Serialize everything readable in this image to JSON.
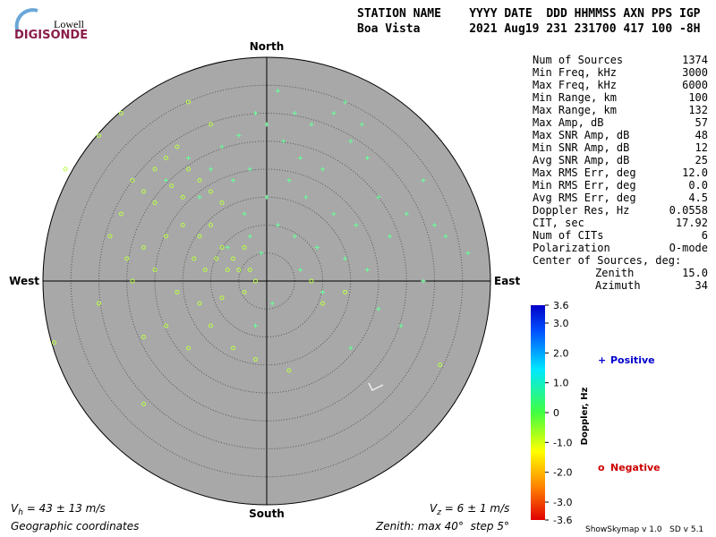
{
  "header": {
    "logo_top": "Lowell",
    "logo_bottom": "DIGISONDE",
    "line1": "STATION NAME    YYYY DATE  DDD HHMMSS AXN PPS IGP",
    "line2": "Boa Vista       2021 Aug19 231 231700 417 100 -8H"
  },
  "stats": {
    "rows": [
      [
        "Num of Sources",
        "1374"
      ],
      [
        "Min Freq, kHz",
        "3000"
      ],
      [
        "Max Freq, kHz",
        "6000"
      ],
      [
        "Min Range, km",
        "100"
      ],
      [
        "Max Range, km",
        "132"
      ],
      [
        "Max Amp, dB",
        "57"
      ],
      [
        "Max SNR Amp, dB",
        "48"
      ],
      [
        "Min SNR Amp, dB",
        "12"
      ],
      [
        "Avg SNR Amp, dB",
        "25"
      ],
      [
        "Max RMS Err, deg",
        "12.0"
      ],
      [
        "Min RMS Err, deg",
        "0.0"
      ],
      [
        "Avg RMS Err, deg",
        "4.5"
      ],
      [
        "Doppler Res, Hz",
        "0.0558"
      ],
      [
        "CIT, sec",
        "17.92"
      ],
      [
        "Num of CITs",
        "6"
      ],
      [
        "Polarization",
        "O-mode"
      ]
    ],
    "center_title": "Center of Sources, deg:",
    "center_rows": [
      [
        "Zenith",
        "15.0"
      ],
      [
        "Azimuth",
        "34"
      ]
    ]
  },
  "chart_data": {
    "type": "skymap",
    "directions": {
      "north": "North",
      "south": "South",
      "east": "East",
      "west": "West"
    },
    "xlim": [
      -40,
      40
    ],
    "ylim": [
      -40,
      40
    ],
    "rticks": [
      5,
      10,
      15,
      20,
      25,
      30,
      35,
      40
    ],
    "series": [
      {
        "name": "Positive",
        "marker": "+",
        "color": "#66ff99",
        "label_color": "#0000cc",
        "x": [
          2,
          5,
          8,
          12,
          15,
          18,
          20,
          10,
          6,
          3,
          0,
          -2,
          -5,
          -8,
          4,
          7,
          12,
          16,
          22,
          25,
          28,
          30,
          -3,
          -6,
          -10,
          -12,
          -4,
          0,
          2,
          5,
          9,
          14,
          18,
          -1,
          -3,
          -7,
          10,
          20,
          28,
          32,
          36,
          14,
          17,
          -14,
          -18,
          6,
          1,
          -2,
          24,
          15
        ],
        "values": [
          34,
          30,
          28,
          30,
          25,
          22,
          15,
          20,
          22,
          25,
          28,
          30,
          26,
          24,
          18,
          15,
          12,
          10,
          8,
          12,
          18,
          10,
          20,
          18,
          20,
          15,
          12,
          15,
          10,
          8,
          6,
          4,
          2,
          5,
          8,
          6,
          -2,
          -5,
          0,
          8,
          5,
          32,
          28,
          22,
          18,
          2,
          -4,
          -8,
          -8,
          -12
        ]
      },
      {
        "name": "Negative",
        "marker": "o",
        "color": "#bbff44",
        "label_color": "#cc0000",
        "x": [
          -20,
          -18,
          -16,
          -14,
          -22,
          -24,
          -20,
          -17,
          -15,
          -12,
          -10,
          -8,
          -26,
          -28,
          -25,
          -22,
          -18,
          -15,
          -12,
          -10,
          -8,
          -6,
          -5,
          -4,
          -7,
          -9,
          -3,
          -2,
          -11,
          -13,
          -20,
          -24,
          -16,
          -12,
          -8,
          -4,
          -30,
          -38,
          -22,
          -18,
          -14,
          -10,
          -6,
          -2,
          4,
          10,
          14,
          8,
          -22,
          -30,
          -26,
          -10,
          -14,
          -36,
          31
        ],
        "values": [
          20,
          22,
          24,
          20,
          16,
          18,
          14,
          17,
          15,
          18,
          16,
          14,
          12,
          8,
          4,
          6,
          8,
          10,
          8,
          10,
          6,
          4,
          2,
          6,
          2,
          4,
          2,
          0,
          2,
          4,
          2,
          0,
          -2,
          -4,
          -3,
          -2,
          -4,
          -11,
          -10,
          -8,
          -12,
          -8,
          -12,
          -14,
          -16,
          -4,
          -2,
          0,
          -22,
          26,
          30,
          28,
          32,
          20,
          -15
        ]
      }
    ],
    "colorbar": {
      "label": "Doppler, Hz",
      "ylim": [
        -3.6,
        3.6
      ],
      "yticks": [
        3.6,
        {
          "value": 3,
          "label": "3.0"
        },
        {
          "value": 2,
          "label": "2.0"
        },
        {
          "value": 1,
          "label": "1.0"
        },
        0,
        {
          "value": -1,
          "label": "-1.0"
        },
        {
          "value": -2,
          "label": "-2.0"
        },
        {
          "value": -3,
          "label": "-3.0"
        },
        -3.6
      ]
    }
  },
  "footer": {
    "vh": {
      "symbol": "V",
      "sub": "h",
      "text": " = 43 ± 13 m/s"
    },
    "vz": {
      "symbol": "V",
      "sub": "z",
      "text": " = 6 ± 1 m/s"
    },
    "coords": "Geographic coordinates",
    "zenith": "Zenith: max 40°  step 5°",
    "version": "ShowSkymap v 1.0   SD v 5.1"
  }
}
